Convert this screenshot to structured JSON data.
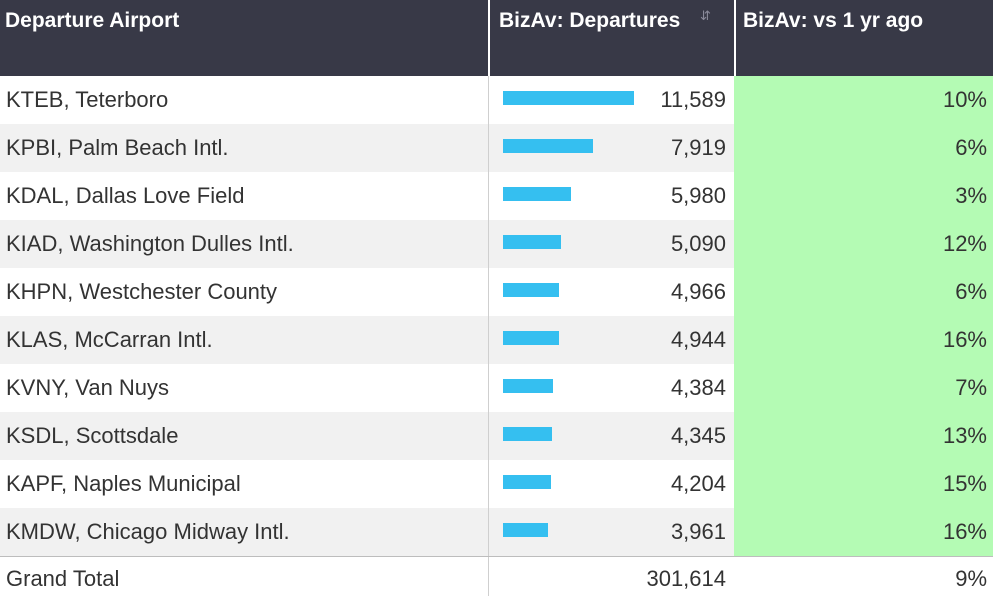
{
  "header": {
    "col_airport": "Departure Airport",
    "col_departures": "BizAv: Departures",
    "col_yoy": "BizAv: vs 1 yr ago",
    "sort_icon": "sort-icon"
  },
  "colors": {
    "header_bg": "#383947",
    "bar": "#35bff0",
    "yoy_cell": "#b4fbb4"
  },
  "rows": [
    {
      "airport": "KTEB, Teterboro",
      "departures": "11,589",
      "departures_value": 11589,
      "yoy": "10%"
    },
    {
      "airport": "KPBI, Palm Beach Intl.",
      "departures": "7,919",
      "departures_value": 7919,
      "yoy": "6%"
    },
    {
      "airport": "KDAL, Dallas Love Field",
      "departures": "5,980",
      "departures_value": 5980,
      "yoy": "3%"
    },
    {
      "airport": "KIAD, Washington Dulles Intl.",
      "departures": "5,090",
      "departures_value": 5090,
      "yoy": "12%"
    },
    {
      "airport": "KHPN, Westchester County",
      "departures": "4,966",
      "departures_value": 4966,
      "yoy": "6%"
    },
    {
      "airport": "KLAS, McCarran Intl.",
      "departures": "4,944",
      "departures_value": 4944,
      "yoy": "16%"
    },
    {
      "airport": "KVNY, Van Nuys",
      "departures": "4,384",
      "departures_value": 4384,
      "yoy": "7%"
    },
    {
      "airport": "KSDL, Scottsdale",
      "departures": "4,345",
      "departures_value": 4345,
      "yoy": "13%"
    },
    {
      "airport": "KAPF, Naples Municipal",
      "departures": "4,204",
      "departures_value": 4204,
      "yoy": "15%"
    },
    {
      "airport": "KMDW, Chicago Midway Intl.",
      "departures": "3,961",
      "departures_value": 3961,
      "yoy": "16%"
    }
  ],
  "total": {
    "label": "Grand Total",
    "departures": "301,614",
    "yoy": "9%"
  }
}
